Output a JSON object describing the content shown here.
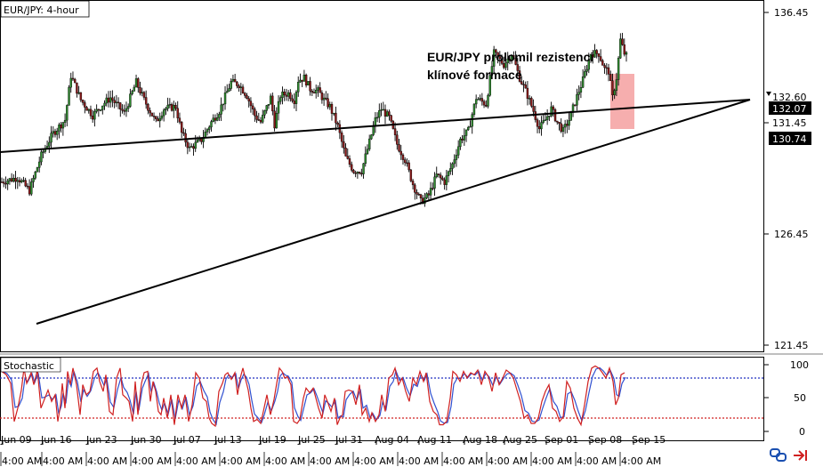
{
  "chart_data": {
    "type": "candlestick",
    "title": "EUR/JPY: 4-hour",
    "annotation": "EUR/JPY prolomil rezistenci\nklínové formace",
    "price_axis": {
      "ylim": [
        120.6,
        137.4
      ],
      "ticks": [
        "136.45",
        "126.45",
        "121.45"
      ],
      "labels": [
        {
          "value": 132.6,
          "text": "132.60",
          "style": "black-marker"
        },
        {
          "value": 132.07,
          "text": "132.07",
          "style": "black"
        },
        {
          "value": 131.45,
          "text": "131.45",
          "style": "plain"
        },
        {
          "value": 130.74,
          "text": "130.74",
          "style": "black"
        }
      ]
    },
    "x_date_labels": [
      "Jun 09",
      "Jun 16",
      "Jun 23",
      "Jun 30",
      "Jul 07",
      "Jul 13",
      "Jul 19",
      "Jul 25",
      "Jul 31",
      "Aug 04",
      "Aug 11",
      "Aug 18",
      "Aug 25",
      "Sep 01",
      "Sep 08",
      "Sep 15"
    ],
    "x_time_label": "4:00 AM",
    "bars_per_day": 6,
    "days": 98,
    "price_path": [
      [
        0,
        128.8
      ],
      [
        8,
        129.0
      ],
      [
        14,
        128.4
      ],
      [
        20,
        130.0
      ],
      [
        26,
        131.0
      ],
      [
        32,
        131.6
      ],
      [
        35,
        133.6
      ],
      [
        40,
        132.5
      ],
      [
        46,
        131.8
      ],
      [
        51,
        132.3
      ],
      [
        55,
        132.6
      ],
      [
        62,
        131.9
      ],
      [
        68,
        133.3
      ],
      [
        72,
        132.5
      ],
      [
        78,
        131.5
      ],
      [
        82,
        132.1
      ],
      [
        88,
        132.2
      ],
      [
        91,
        131.0
      ],
      [
        95,
        130.3
      ],
      [
        101,
        130.7
      ],
      [
        106,
        131.5
      ],
      [
        110,
        132.0
      ],
      [
        116,
        133.3
      ],
      [
        120,
        133.2
      ],
      [
        124,
        132.7
      ],
      [
        128,
        131.8
      ],
      [
        131,
        131.5
      ],
      [
        136,
        132.6
      ],
      [
        138,
        131.4
      ],
      [
        141,
        132.7
      ],
      [
        145,
        132.8
      ],
      [
        148,
        132.5
      ],
      [
        150,
        133.4
      ],
      [
        153,
        133.5
      ],
      [
        156,
        133.0
      ],
      [
        160,
        132.9
      ],
      [
        163,
        132.5
      ],
      [
        166,
        132.2
      ],
      [
        170,
        131.3
      ],
      [
        174,
        129.9
      ],
      [
        178,
        129.3
      ],
      [
        182,
        129.3
      ],
      [
        186,
        130.6
      ],
      [
        189,
        131.6
      ],
      [
        192,
        132.1
      ],
      [
        196,
        131.7
      ],
      [
        200,
        130.5
      ],
      [
        204,
        129.8
      ],
      [
        208,
        128.7
      ],
      [
        212,
        127.9
      ],
      [
        216,
        128.2
      ],
      [
        220,
        129.1
      ],
      [
        224,
        128.8
      ],
      [
        228,
        129.6
      ],
      [
        232,
        130.7
      ],
      [
        236,
        131.1
      ],
      [
        240,
        132.6
      ],
      [
        245,
        132.3
      ],
      [
        249,
        134.6
      ],
      [
        254,
        134.1
      ],
      [
        258,
        134.6
      ],
      [
        262,
        133.5
      ],
      [
        266,
        132.7
      ],
      [
        269,
        132.0
      ],
      [
        272,
        131.2
      ],
      [
        275,
        131.6
      ],
      [
        278,
        132.1
      ],
      [
        281,
        131.5
      ],
      [
        284,
        131.1
      ],
      [
        287,
        131.6
      ],
      [
        290,
        132.4
      ],
      [
        294,
        133.4
      ],
      [
        298,
        134.6
      ],
      [
        302,
        134.6
      ],
      [
        305,
        133.9
      ],
      [
        307,
        133.8
      ],
      [
        309,
        132.6
      ],
      [
        311,
        133.5
      ],
      [
        313,
        135.2
      ],
      [
        315,
        134.6
      ],
      [
        316,
        134.5
      ]
    ],
    "stochastic": {
      "label": "Stochastic",
      "ylim": [
        0,
        100
      ],
      "ticks": [
        "100",
        "50",
        "0"
      ],
      "levels": [
        80,
        20
      ],
      "k_path": [
        [
          0,
          90
        ],
        [
          5,
          85
        ],
        [
          10,
          72
        ],
        [
          14,
          15
        ],
        [
          18,
          35
        ],
        [
          22,
          62
        ],
        [
          25,
          95
        ],
        [
          28,
          72
        ],
        [
          33,
          88
        ],
        [
          36,
          70
        ],
        [
          40,
          92
        ],
        [
          44,
          35
        ],
        [
          47,
          45
        ],
        [
          52,
          62
        ],
        [
          56,
          45
        ],
        [
          60,
          55
        ],
        [
          63,
          15
        ],
        [
          66,
          40
        ],
        [
          68,
          72
        ],
        [
          71,
          35
        ],
        [
          74,
          90
        ],
        [
          77,
          70
        ],
        [
          80,
          95
        ],
        [
          84,
          70
        ],
        [
          88,
          25
        ],
        [
          91,
          70
        ],
        [
          95,
          55
        ],
        [
          99,
          60
        ],
        [
          103,
          90
        ],
        [
          107,
          95
        ],
        [
          110,
          75
        ],
        [
          114,
          60
        ],
        [
          117,
          85
        ],
        [
          121,
          30
        ],
        [
          125,
          25
        ],
        [
          129,
          80
        ],
        [
          133,
          95
        ],
        [
          136,
          55
        ],
        [
          140,
          50
        ],
        [
          143,
          45
        ],
        [
          147,
          15
        ],
        [
          150,
          75
        ],
        [
          153,
          25
        ],
        [
          157,
          72
        ],
        [
          160,
          88
        ],
        [
          164,
          90
        ],
        [
          167,
          45
        ],
        [
          170,
          75
        ],
        [
          173,
          60
        ],
        [
          176,
          30
        ],
        [
          179,
          25
        ],
        [
          182,
          50
        ],
        [
          186,
          20
        ],
        [
          190,
          55
        ],
        [
          194,
          10
        ],
        [
          198,
          55
        ],
        [
          202,
          35
        ],
        [
          206,
          55
        ],
        [
          210,
          15
        ],
        [
          214,
          40
        ],
        [
          218,
          88
        ],
        [
          222,
          80
        ],
        [
          226,
          50
        ],
        [
          230,
          45
        ],
        [
          233,
          20
        ],
        [
          236,
          12
        ],
        [
          240,
          8
        ],
        [
          244,
          60
        ],
        [
          248,
          72
        ],
        [
          251,
          85
        ],
        [
          254,
          88
        ],
        [
          258,
          78
        ],
        [
          262,
          88
        ],
        [
          265,
          55
        ],
        [
          268,
          80
        ],
        [
          271,
          95
        ],
        [
          274,
          78
        ],
        [
          277,
          62
        ],
        [
          280,
          35
        ],
        [
          283,
          15
        ],
        [
          287,
          18
        ],
        [
          291,
          12
        ],
        [
          294,
          30
        ],
        [
          298,
          55
        ],
        [
          302,
          25
        ],
        [
          306,
          48
        ],
        [
          309,
          72
        ],
        [
          312,
          95
        ],
        [
          315,
          90
        ],
        [
          318,
          80
        ],
        [
          321,
          82
        ],
        [
          325,
          70
        ],
        [
          328,
          15
        ],
        [
          332,
          12
        ],
        [
          335,
          18
        ],
        [
          339,
          50
        ],
        [
          342,
          65
        ],
        [
          346,
          58
        ],
        [
          350,
          65
        ],
        [
          353,
          50
        ],
        [
          356,
          35
        ],
        [
          360,
          20
        ],
        [
          363,
          55
        ],
        [
          366,
          45
        ],
        [
          370,
          30
        ],
        [
          374,
          50
        ],
        [
          377,
          10
        ],
        [
          380,
          20
        ],
        [
          383,
          25
        ],
        [
          386,
          60
        ],
        [
          390,
          62
        ],
        [
          394,
          60
        ],
        [
          398,
          40
        ],
        [
          402,
          70
        ],
        [
          405,
          25
        ],
        [
          409,
          35
        ],
        [
          413,
          15
        ],
        [
          416,
          28
        ],
        [
          420,
          15
        ],
        [
          424,
          25
        ],
        [
          427,
          55
        ],
        [
          431,
          30
        ],
        [
          435,
          80
        ],
        [
          439,
          85
        ],
        [
          442,
          95
        ],
        [
          446,
          70
        ],
        [
          450,
          80
        ],
        [
          454,
          60
        ],
        [
          458,
          45
        ],
        [
          462,
          80
        ],
        [
          466,
          70
        ],
        [
          470,
          90
        ],
        [
          474,
          75
        ],
        [
          477,
          88
        ],
        [
          481,
          45
        ],
        [
          485,
          30
        ],
        [
          489,
          25
        ],
        [
          492,
          10
        ],
        [
          496,
          10
        ],
        [
          500,
          15
        ],
        [
          504,
          50
        ],
        [
          507,
          90
        ],
        [
          511,
          85
        ],
        [
          515,
          75
        ],
        [
          519,
          90
        ],
        [
          523,
          80
        ],
        [
          527,
          88
        ],
        [
          531,
          85
        ],
        [
          535,
          92
        ],
        [
          539,
          70
        ],
        [
          543,
          90
        ],
        [
          547,
          82
        ],
        [
          551,
          60
        ],
        [
          555,
          88
        ],
        [
          559,
          70
        ],
        [
          563,
          80
        ],
        [
          567,
          92
        ],
        [
          571,
          88
        ],
        [
          575,
          80
        ],
        [
          579,
          62
        ],
        [
          583,
          45
        ],
        [
          587,
          20
        ],
        [
          591,
          25
        ],
        [
          595,
          12
        ],
        [
          599,
          12
        ],
        [
          603,
          20
        ],
        [
          607,
          45
        ],
        [
          611,
          60
        ],
        [
          615,
          70
        ],
        [
          619,
          35
        ],
        [
          623,
          30
        ],
        [
          627,
          15
        ],
        [
          631,
          22
        ],
        [
          635,
          75
        ],
        [
          639,
          65
        ],
        [
          643,
          35
        ],
        [
          647,
          20
        ],
        [
          651,
          10
        ],
        [
          655,
          40
        ],
        [
          659,
          75
        ],
        [
          663,
          95
        ],
        [
          667,
          98
        ],
        [
          671,
          95
        ],
        [
          675,
          88
        ],
        [
          679,
          80
        ],
        [
          683,
          95
        ],
        [
          687,
          75
        ],
        [
          690,
          40
        ],
        [
          693,
          50
        ],
        [
          696,
          85
        ],
        [
          700,
          88
        ]
      ]
    },
    "colors": {
      "bull_candle": "#2e8b2e",
      "bear_candle": "#8b1a1a",
      "wick": "#000000",
      "trendline": "#000000",
      "highlight": "#f4a0a0",
      "stoch_k": "#d02020",
      "stoch_d": "#3050d0",
      "level_top": "#2030c0",
      "level_bottom": "#d02020"
    },
    "icons": [
      "chain-link-icon",
      "scroll-right-icon"
    ]
  }
}
